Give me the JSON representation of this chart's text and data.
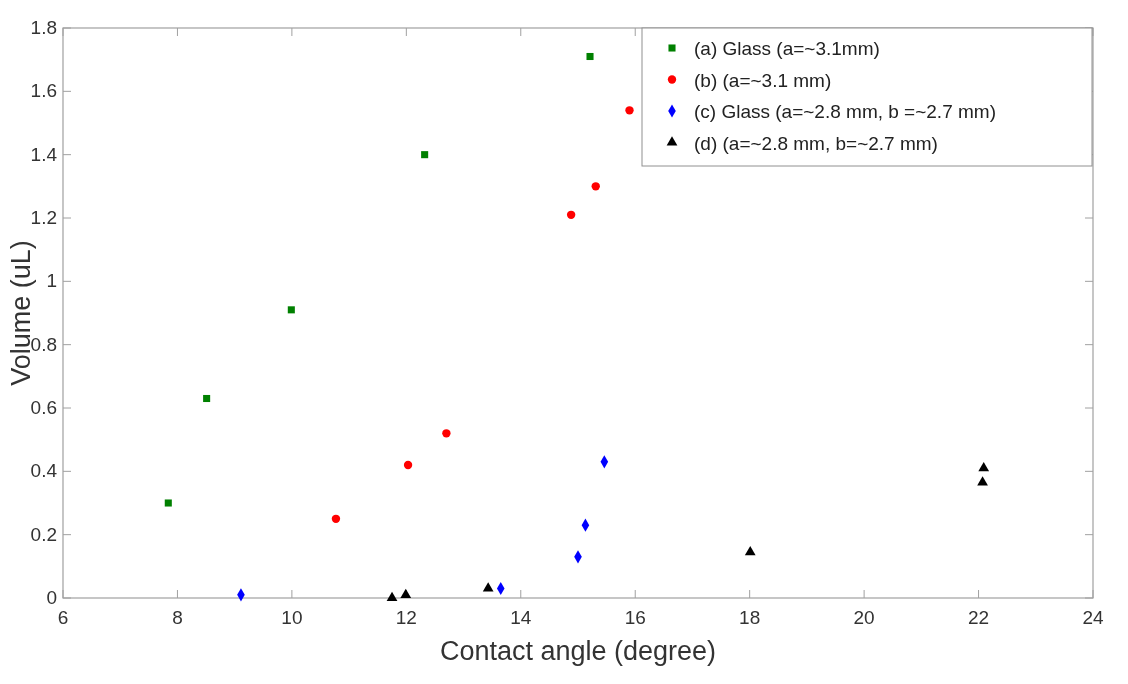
{
  "chart_data": {
    "type": "scatter",
    "xlabel": "Contact angle (degree)",
    "ylabel": "Volume (uL)",
    "xlim": [
      6,
      24
    ],
    "xticks": [
      6,
      8,
      10,
      12,
      14,
      16,
      18,
      20,
      22,
      24
    ],
    "ylim": [
      0,
      1.8
    ],
    "yticks": [
      0,
      0.2,
      0.4,
      0.6,
      0.8,
      1,
      1.2,
      1.4,
      1.6,
      1.8
    ],
    "grid": false,
    "legend": "top right",
    "series": [
      {
        "name": "(a) Glass (a=~3.1mm)",
        "color": "#008000",
        "marker": "square",
        "x": [
          7.84,
          8.51,
          9.99,
          12.32,
          15.21
        ],
        "values": [
          0.3,
          0.63,
          0.91,
          1.4,
          1.71
        ]
      },
      {
        "name": "(b) (a=~3.1 mm)",
        "color": "#ff0000",
        "marker": "circle",
        "x": [
          10.77,
          12.03,
          12.7,
          14.88,
          15.31,
          15.9
        ],
        "values": [
          0.25,
          0.42,
          0.52,
          1.21,
          1.3,
          1.54
        ]
      },
      {
        "name": "(c) Glass (a=~2.8 mm, b =~2.7 mm)",
        "color": "#0000ff",
        "marker": "diamond",
        "x": [
          9.11,
          13.65,
          15.0,
          15.13,
          15.46
        ],
        "values": [
          0.01,
          0.03,
          0.13,
          0.23,
          0.43
        ]
      },
      {
        "name": "(d) (a=~2.8 mm, b=~2.7 mm)",
        "color": "#000000",
        "marker": "triangle",
        "x": [
          11.75,
          11.99,
          13.43,
          18.01,
          22.07,
          22.09
        ],
        "values": [
          0.0,
          0.01,
          0.03,
          0.145,
          0.365,
          0.41
        ]
      }
    ]
  }
}
